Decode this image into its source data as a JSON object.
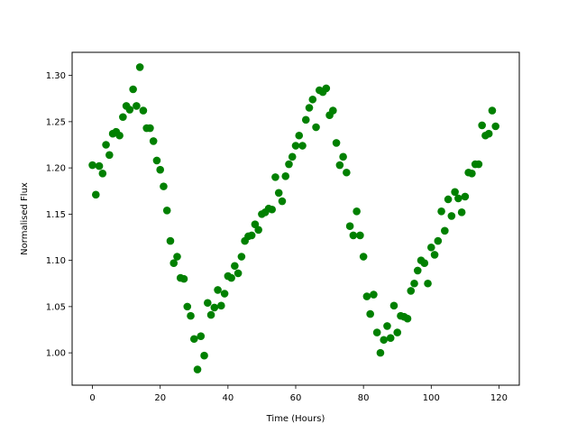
{
  "chart_data": {
    "type": "scatter",
    "title": "",
    "xlabel": "Time (Hours)",
    "ylabel": "Normalised Flux",
    "xlim": [
      -6,
      126
    ],
    "ylim": [
      0.965,
      1.325
    ],
    "xticks": [
      0,
      20,
      40,
      60,
      80,
      100,
      120
    ],
    "yticks": [
      1.0,
      1.05,
      1.1,
      1.15,
      1.2,
      1.25,
      1.3
    ],
    "ytick_labels": [
      "1.00",
      "1.05",
      "1.10",
      "1.15",
      "1.20",
      "1.25",
      "1.30"
    ],
    "grid": false,
    "colors": {
      "marker": "#008000",
      "axes": "#000000"
    },
    "series": [
      {
        "x": [
          0,
          1,
          2,
          3,
          4,
          5,
          6,
          7,
          8,
          9,
          10,
          11,
          12,
          13,
          14,
          15,
          16,
          17,
          18,
          19,
          20,
          21,
          22,
          23,
          24,
          25,
          26,
          27,
          28,
          29,
          30,
          31,
          32,
          33,
          34,
          35,
          36,
          37,
          38,
          39,
          40,
          41,
          42,
          43,
          44,
          45,
          46,
          47,
          48,
          49,
          50,
          51,
          52,
          53,
          54,
          55,
          56,
          57,
          58,
          59,
          60,
          61,
          62,
          63,
          64,
          65,
          66,
          67,
          68,
          69,
          70,
          71,
          72,
          73,
          74,
          75,
          76,
          77,
          78,
          79,
          80,
          81,
          82,
          83,
          84,
          85,
          86,
          87,
          88,
          89,
          90,
          91,
          92,
          93,
          94,
          95,
          96,
          97,
          98,
          99,
          100,
          101,
          102,
          103,
          104,
          105,
          106,
          107,
          108,
          109,
          110,
          111,
          112,
          113,
          114,
          115,
          116,
          117,
          118,
          119
        ],
        "y": [
          1.203,
          1.171,
          1.202,
          1.194,
          1.225,
          1.214,
          1.237,
          1.239,
          1.235,
          1.255,
          1.267,
          1.263,
          1.285,
          1.267,
          1.309,
          1.262,
          1.243,
          1.243,
          1.229,
          1.208,
          1.198,
          1.18,
          1.154,
          1.121,
          1.097,
          1.104,
          1.081,
          1.08,
          1.05,
          1.04,
          1.015,
          0.982,
          1.018,
          0.997,
          1.054,
          1.041,
          1.049,
          1.068,
          1.051,
          1.064,
          1.083,
          1.081,
          1.094,
          1.086,
          1.104,
          1.121,
          1.126,
          1.127,
          1.139,
          1.133,
          1.15,
          1.152,
          1.156,
          1.155,
          1.19,
          1.173,
          1.164,
          1.191,
          1.204,
          1.212,
          1.224,
          1.235,
          1.224,
          1.252,
          1.265,
          1.274,
          1.244,
          1.284,
          1.282,
          1.286,
          1.257,
          1.262,
          1.227,
          1.203,
          1.212,
          1.195,
          1.137,
          1.127,
          1.153,
          1.127,
          1.104,
          1.061,
          1.042,
          1.063,
          1.022,
          1.0,
          1.014,
          1.029,
          1.016,
          1.051,
          1.022,
          1.04,
          1.039,
          1.037,
          1.067,
          1.075,
          1.089,
          1.1,
          1.097,
          1.075,
          1.114,
          1.106,
          1.121,
          1.153,
          1.132,
          1.166,
          1.148,
          1.174,
          1.167,
          1.152,
          1.169,
          1.195,
          1.194,
          1.204,
          1.204,
          1.246,
          1.235,
          1.237,
          1.262,
          1.245
        ]
      }
    ]
  }
}
